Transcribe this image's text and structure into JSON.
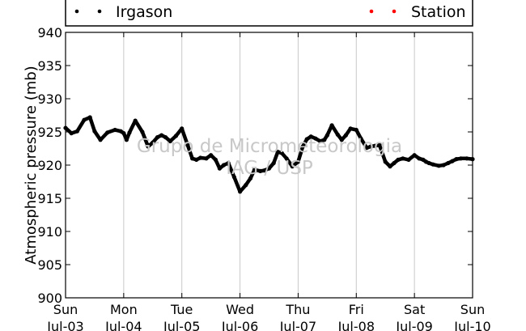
{
  "chart_data": {
    "type": "scatter",
    "title": "",
    "xlabel": "",
    "ylabel": "Atmospheric pressure (mb)",
    "ylim": [
      900,
      940
    ],
    "y_ticks": [
      900,
      905,
      910,
      915,
      920,
      925,
      930,
      935,
      940
    ],
    "x_range_days": [
      0,
      7
    ],
    "x_ticks": [
      {
        "day": 0,
        "weekday": "Sun",
        "date": "Jul-03"
      },
      {
        "day": 1,
        "weekday": "Mon",
        "date": "Jul-04"
      },
      {
        "day": 2,
        "weekday": "Tue",
        "date": "Jul-05"
      },
      {
        "day": 3,
        "weekday": "Wed",
        "date": "Jul-06"
      },
      {
        "day": 4,
        "weekday": "Thu",
        "date": "Jul-07"
      },
      {
        "day": 5,
        "weekday": "Fri",
        "date": "Jul-08"
      },
      {
        "day": 6,
        "weekday": "Sat",
        "date": "Jul-09"
      },
      {
        "day": 7,
        "weekday": "Sun",
        "date": "Jul-10"
      }
    ],
    "grid": {
      "x": true,
      "y": false
    },
    "legend_placement": "top",
    "watermark": [
      "Grupo de Micrometeorologia",
      "IAG / USP"
    ],
    "series": [
      {
        "name": "Irgason",
        "color": "#000000",
        "x": [
          0.0,
          0.1,
          0.2,
          0.32,
          0.42,
          0.5,
          0.6,
          0.72,
          0.85,
          0.95,
          1.0,
          1.05,
          1.1,
          1.2,
          1.32,
          1.42,
          1.5,
          1.58,
          1.65,
          1.72,
          1.8,
          1.9,
          2.0,
          2.1,
          2.18,
          2.25,
          2.32,
          2.42,
          2.5,
          2.58,
          2.65,
          2.72,
          2.8,
          2.9,
          3.0,
          3.1,
          3.18,
          3.25,
          3.35,
          3.42,
          3.5,
          3.58,
          3.65,
          3.72,
          3.8,
          3.9,
          4.0,
          4.08,
          4.15,
          4.22,
          4.3,
          4.38,
          4.45,
          4.5,
          4.58,
          4.68,
          4.75,
          4.82,
          4.9,
          5.0,
          5.08,
          5.18,
          5.25,
          5.32,
          5.4,
          5.5,
          5.58,
          5.65,
          5.72,
          5.8,
          5.9,
          6.0,
          6.08,
          6.15,
          6.2,
          6.25,
          6.32,
          6.42,
          6.5,
          6.58,
          6.65,
          6.72,
          6.8,
          6.9,
          7.0
        ],
        "y": [
          925.6,
          924.8,
          925.1,
          926.8,
          927.2,
          925.1,
          923.8,
          924.9,
          925.3,
          925.1,
          924.8,
          923.8,
          924.9,
          926.7,
          925.0,
          922.8,
          923.4,
          924.2,
          924.5,
          924.2,
          923.6,
          924.4,
          925.5,
          923.0,
          921.0,
          920.8,
          921.1,
          921.0,
          921.5,
          920.8,
          919.5,
          920.0,
          920.3,
          918.2,
          916.0,
          917.0,
          918.0,
          919.3,
          919.1,
          919.2,
          919.5,
          920.3,
          922.0,
          921.8,
          921.0,
          919.8,
          920.5,
          922.8,
          923.9,
          924.3,
          924.0,
          923.6,
          923.8,
          924.5,
          926.0,
          924.6,
          923.8,
          924.5,
          925.5,
          925.3,
          924.0,
          922.6,
          922.8,
          922.9,
          923.0,
          920.5,
          919.8,
          920.3,
          920.8,
          921.0,
          920.8,
          921.5,
          921.0,
          920.8,
          920.5,
          920.3,
          920.1,
          919.9,
          920.0,
          920.3,
          920.6,
          920.9,
          921.0,
          921.0,
          920.9
        ]
      },
      {
        "name": "Station",
        "color": "#ff0000",
        "x": [],
        "y": []
      }
    ]
  }
}
